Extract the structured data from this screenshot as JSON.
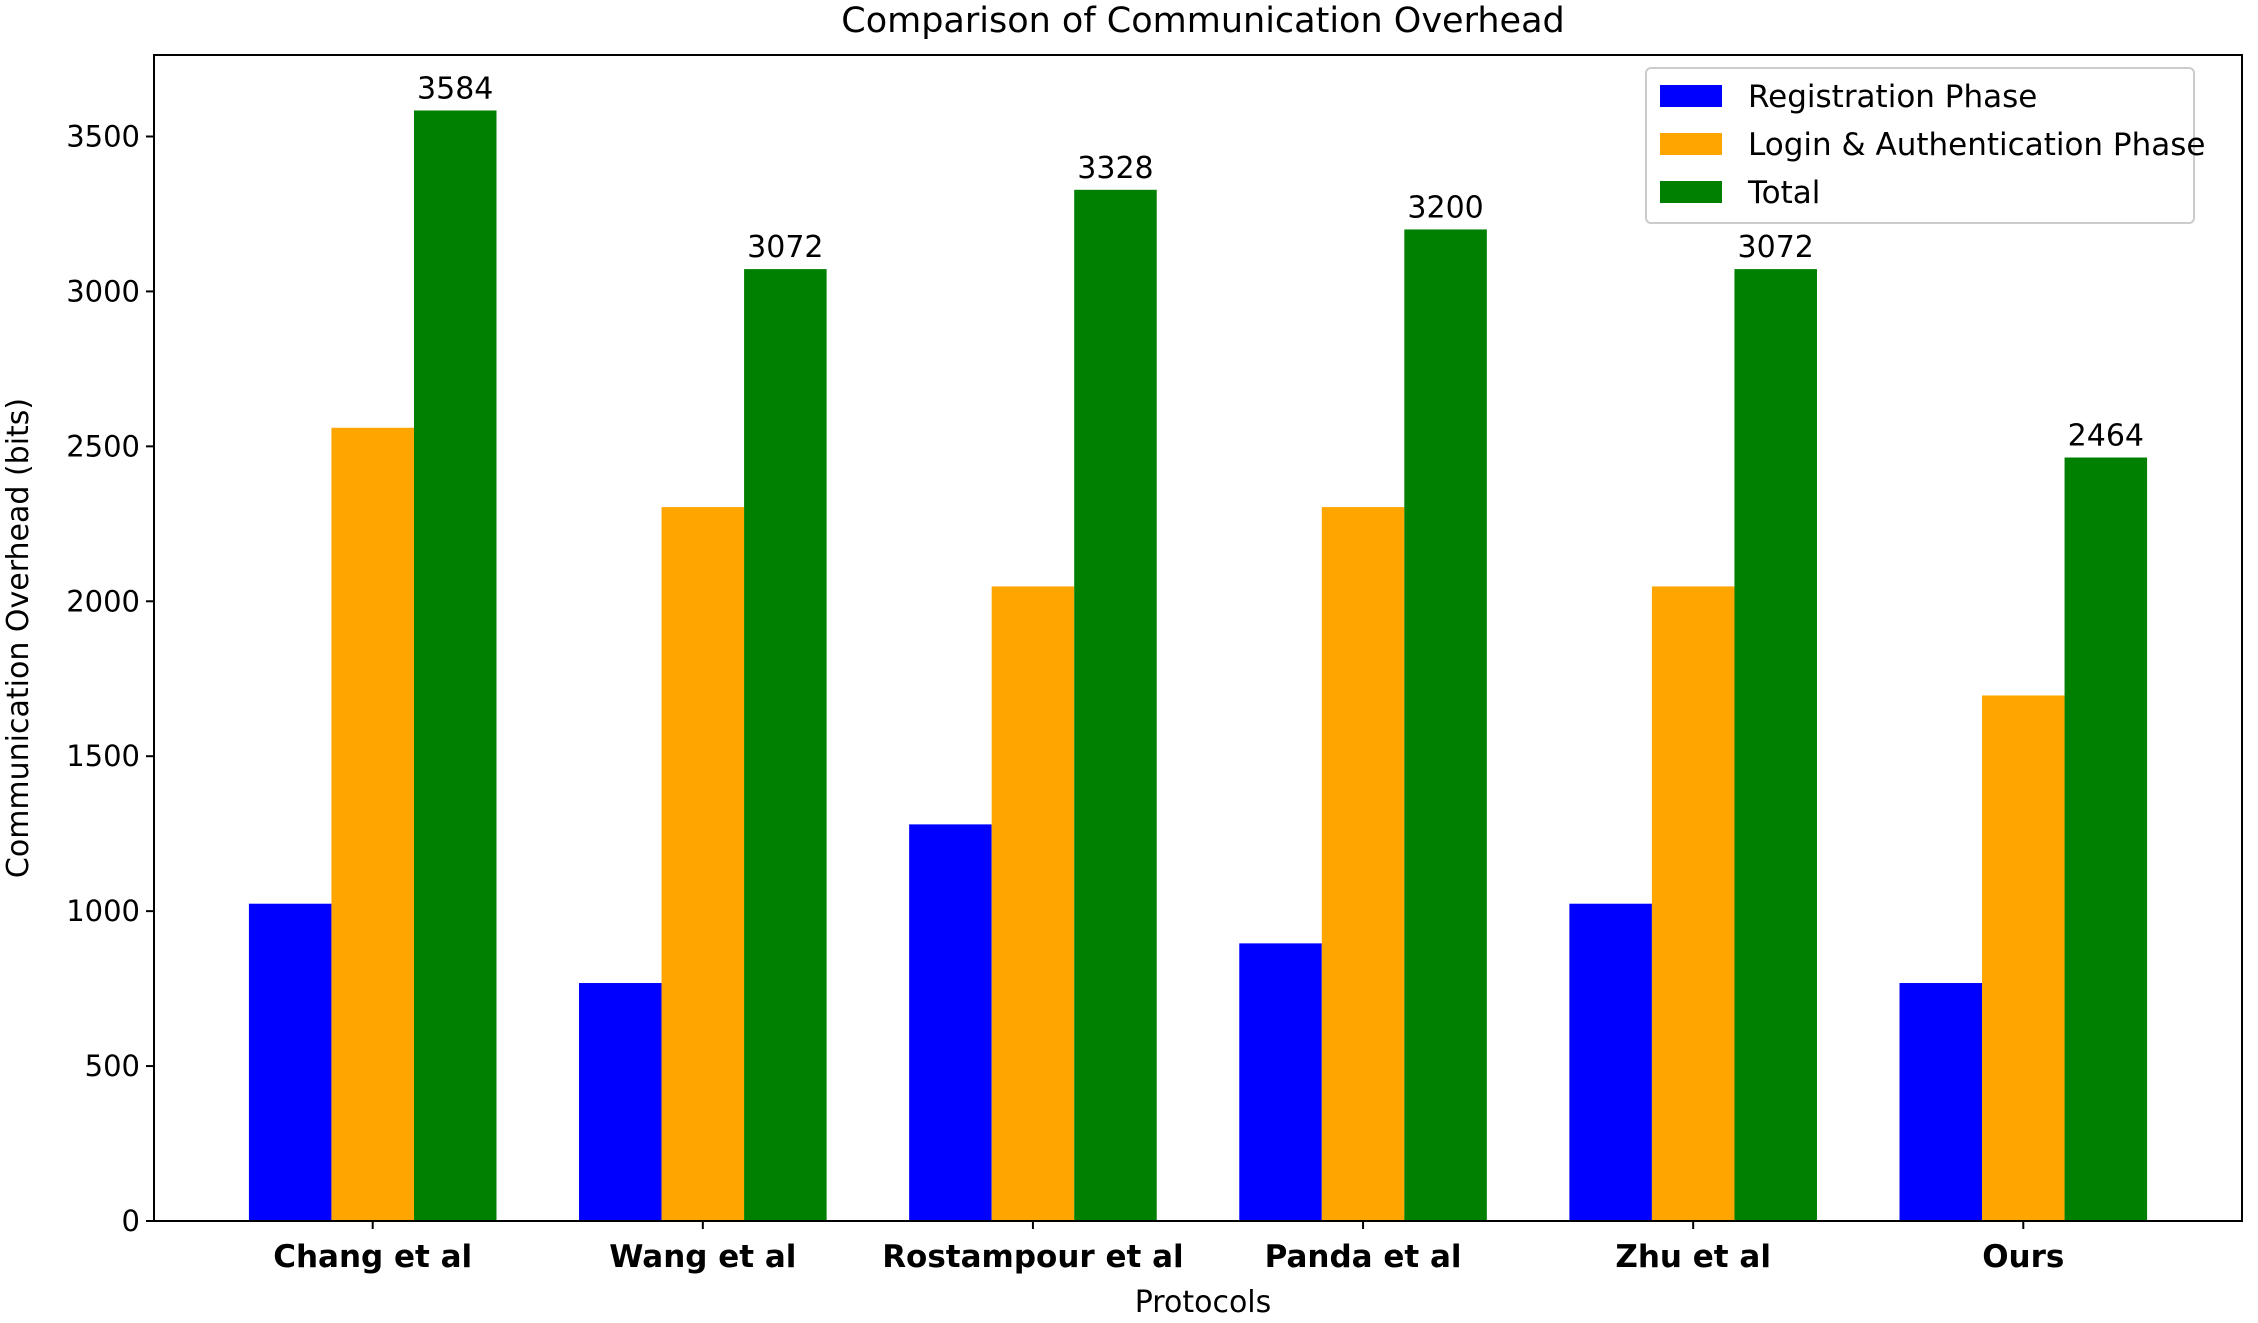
{
  "chart_data": {
    "type": "bar",
    "title": "Comparison of Communication Overhead",
    "xlabel": "Protocols",
    "ylabel": "Communication Overhead (bits)",
    "categories": [
      "Chang et al",
      "Wang et al",
      "Rostampour et al",
      "Panda et al",
      "Zhu et al",
      "Ours"
    ],
    "series": [
      {
        "name": "Registration Phase",
        "color": "#0000ff",
        "values": [
          1024,
          768,
          1280,
          896,
          1024,
          768
        ]
      },
      {
        "name": "Login & Authentication Phase",
        "color": "#ffa500",
        "values": [
          2560,
          2304,
          2048,
          2304,
          2048,
          1696
        ]
      },
      {
        "name": "Total",
        "color": "#008000",
        "values": [
          3584,
          3072,
          3328,
          3200,
          3072,
          2464
        ]
      }
    ],
    "data_labels": [
      "3584",
      "3072",
      "3328",
      "3200",
      "3072",
      "2464"
    ],
    "yticks": [
      "0",
      "500",
      "1000",
      "1500",
      "2000",
      "2500",
      "3000",
      "3500"
    ],
    "ylim": [
      0,
      3763
    ],
    "grid": false,
    "legend_position": "top-right"
  }
}
